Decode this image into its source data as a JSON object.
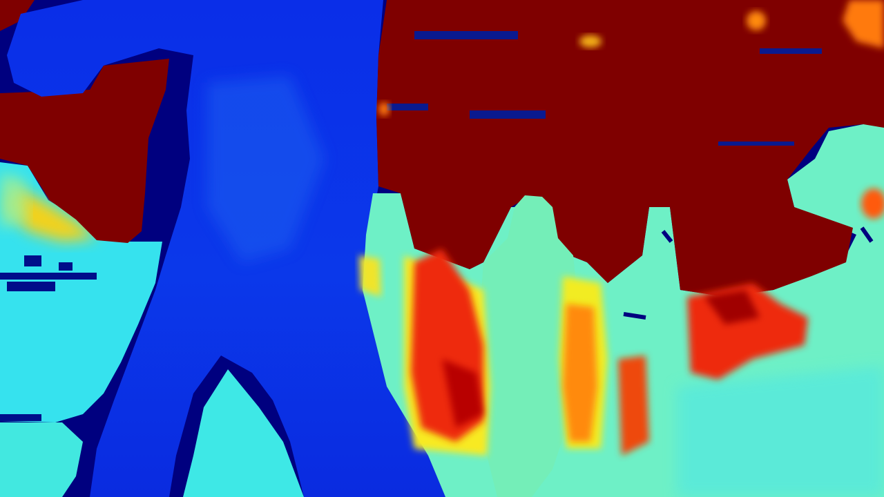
{
  "image": {
    "kind": "depth-map visualization",
    "colormap": "jet",
    "palette": {
      "near": "#00007f",
      "blue": "#0a2ee8",
      "light_blue": "#1aa6ff",
      "cyan": "#36e4ee",
      "aqua_green": "#6ef0c8",
      "yellow": "#f4e81a",
      "orange": "#ff7a10",
      "red": "#ee2a10",
      "far": "#7f0000"
    },
    "regions": [
      "sky-far-region-left",
      "sky-far-region-right",
      "foreground-blue-column",
      "person-silhouette",
      "hot-band-left",
      "hot-band-right",
      "hot-patch-right"
    ]
  }
}
